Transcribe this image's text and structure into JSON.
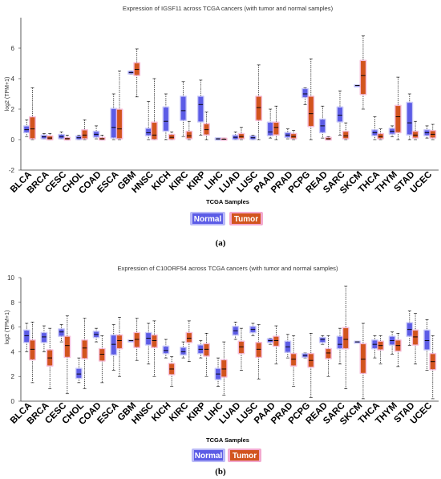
{
  "colors": {
    "normal_fill": "#5c5ce6",
    "tumor_fill": "#d2541e",
    "normal_glow": "#b9b9f7",
    "tumor_glow": "#f3a9cf",
    "axis": "#333333",
    "whisker": "#000000"
  },
  "chart_data": [
    {
      "type": "box",
      "panel_label": "(a)",
      "title": "Expression of IGSF11 across TCGA cancers (with tumor and normal samples)",
      "xlabel": "TCGA Samples",
      "ylabel": "log2 (TPM+1)",
      "ylim": [
        -2,
        8
      ],
      "yticks": [
        -2,
        0,
        2,
        4,
        6
      ],
      "legend": [
        "Normal",
        "Tumor"
      ],
      "legend_position": "bottom-center",
      "categories": [
        "BLCA",
        "BRCA",
        "CESC",
        "CHOL",
        "COAD",
        "ESCA",
        "GBM",
        "HNSC",
        "KICH",
        "KIRC",
        "KIRP",
        "LIHC",
        "LUAD",
        "LUSC",
        "PAAD",
        "PRAD",
        "PCPG",
        "READ",
        "SARC",
        "SKCM",
        "THCA",
        "THYM",
        "STAD",
        "UCEC"
      ],
      "series": [
        {
          "name": "Normal",
          "boxes": [
            [
              0.2,
              0.5,
              0.65,
              0.85,
              1.3
            ],
            [
              0.05,
              0.1,
              0.18,
              0.25,
              0.4
            ],
            [
              0.05,
              0.1,
              0.2,
              0.3,
              0.5
            ],
            [
              0,
              0.05,
              0.12,
              0.2,
              0.3
            ],
            [
              0.05,
              0.2,
              0.35,
              0.5,
              0.9
            ],
            [
              0,
              0.15,
              0.8,
              2.0,
              3.0
            ],
            [
              4.3,
              4.35,
              4.4,
              4.45,
              4.5
            ],
            [
              0,
              0.3,
              0.45,
              0.7,
              2.5
            ],
            [
              0,
              0.6,
              1.2,
              2.1,
              3.0
            ],
            [
              0.2,
              1.3,
              1.9,
              2.8,
              3.8
            ],
            [
              0.3,
              1.2,
              2.3,
              2.8,
              3.9
            ],
            [
              0,
              0.02,
              0.05,
              0.07,
              0.1
            ],
            [
              0,
              0.05,
              0.15,
              0.25,
              0.5
            ],
            [
              0,
              0.05,
              0.12,
              0.2,
              0.3
            ],
            [
              0.1,
              0.3,
              0.5,
              1.1,
              2.0
            ],
            [
              0.05,
              0.18,
              0.3,
              0.42,
              0.7
            ],
            [
              2.3,
              2.8,
              3.0,
              3.3,
              3.4
            ],
            [
              0.1,
              0.5,
              0.9,
              1.3,
              2.2
            ],
            [
              0.3,
              1.2,
              1.6,
              2.1,
              3.2
            ],
            [
              3.55,
              3.55,
              3.55,
              3.55,
              3.55
            ],
            [
              0,
              0.3,
              0.45,
              0.6,
              1.5
            ],
            [
              0.2,
              0.4,
              0.55,
              0.7,
              0.9
            ],
            [
              0,
              0.35,
              1.1,
              2.4,
              3.0
            ],
            [
              0.1,
              0.3,
              0.45,
              0.6,
              0.9
            ]
          ]
        },
        {
          "name": "Tumor",
          "boxes": [
            [
              0,
              0.1,
              0.7,
              1.45,
              3.4
            ],
            [
              0,
              0.03,
              0.1,
              0.2,
              0.4
            ],
            [
              0,
              0.02,
              0.06,
              0.1,
              0.3
            ],
            [
              0,
              0.1,
              0.3,
              0.6,
              1.3
            ],
            [
              0,
              0.02,
              0.05,
              0.1,
              0.3
            ],
            [
              0,
              0.1,
              0.7,
              1.95,
              4.5
            ],
            [
              2.8,
              4.25,
              4.6,
              5.0,
              5.95
            ],
            [
              0,
              0.05,
              0.3,
              1.1,
              4.0
            ],
            [
              0,
              0.05,
              0.15,
              0.3,
              0.5
            ],
            [
              0,
              0.1,
              0.25,
              0.5,
              1.2
            ],
            [
              0,
              0.35,
              0.65,
              1.0,
              1.8
            ],
            [
              0,
              0.01,
              0.03,
              0.05,
              0.1
            ],
            [
              0,
              0.1,
              0.2,
              0.35,
              0.8
            ],
            [
              0,
              1.3,
              2.1,
              2.8,
              4.9
            ],
            [
              0,
              0.35,
              0.8,
              1.1,
              2.2
            ],
            [
              0,
              0.1,
              0.2,
              0.35,
              0.6
            ],
            [
              0,
              0.9,
              1.7,
              2.8,
              5.3
            ],
            [
              0,
              0.02,
              0.05,
              0.1,
              0.2
            ],
            [
              0,
              0.1,
              0.25,
              0.5,
              1.1
            ],
            [
              2.0,
              3.0,
              4.2,
              5.15,
              6.8
            ],
            [
              0,
              0.1,
              0.2,
              0.35,
              0.7
            ],
            [
              0,
              0.5,
              1.5,
              2.2,
              4.1
            ],
            [
              0,
              0.15,
              0.3,
              0.5,
              1.2
            ],
            [
              0,
              0.15,
              0.35,
              0.55,
              1.0
            ]
          ]
        }
      ]
    },
    {
      "type": "box",
      "panel_label": "(b)",
      "title": "Expression of C10ORF54 across TCGA cancers (with tumor and normal samples)",
      "xlabel": "TCGA Samples",
      "ylabel": "log2 (TPM+1)",
      "ylim": [
        0,
        10
      ],
      "yticks": [
        0,
        2,
        4,
        6,
        8,
        10
      ],
      "legend": [
        "Normal",
        "Tumor"
      ],
      "legend_position": "bottom-center",
      "categories": [
        "BLCA",
        "BRCA",
        "CESC",
        "CHOL",
        "COAD",
        "ESCA",
        "GBM",
        "HNSC",
        "KICH",
        "KIRC",
        "KIRP",
        "LIHC",
        "LUAD",
        "LUSC",
        "PAAD",
        "PRAD",
        "PCPG",
        "READ",
        "SARC",
        "SKCM",
        "THCA",
        "THYM",
        "STAD",
        "UCEC"
      ],
      "series": [
        {
          "name": "Normal",
          "boxes": [
            [
              4.0,
              4.8,
              5.3,
              5.7,
              6.3
            ],
            [
              4.0,
              4.8,
              5.2,
              5.5,
              6.1
            ],
            [
              4.8,
              5.3,
              5.6,
              5.8,
              6.2
            ],
            [
              1.5,
              1.9,
              2.2,
              2.6,
              3.5
            ],
            [
              4.8,
              5.2,
              5.4,
              5.6,
              5.9
            ],
            [
              2.5,
              3.8,
              4.6,
              5.3,
              6.2
            ],
            [
              4.9,
              4.9,
              4.9,
              4.9,
              4.9
            ],
            [
              3.0,
              4.6,
              5.1,
              5.5,
              6.3
            ],
            [
              3.5,
              3.9,
              4.1,
              4.4,
              5.0
            ],
            [
              3.5,
              3.8,
              4.0,
              4.3,
              4.8
            ],
            [
              3.5,
              3.9,
              4.2,
              4.5,
              4.9
            ],
            [
              1.2,
              1.8,
              2.2,
              2.6,
              3.5
            ],
            [
              5.0,
              5.4,
              5.7,
              6.0,
              6.4
            ],
            [
              5.3,
              5.6,
              5.8,
              6.0,
              6.3
            ],
            [
              4.6,
              4.8,
              4.9,
              5.0,
              5.1
            ],
            [
              3.5,
              4.0,
              4.4,
              4.8,
              5.4
            ],
            [
              3.5,
              3.6,
              3.7,
              3.8,
              3.9
            ],
            [
              4.6,
              4.8,
              5.0,
              5.1,
              5.3
            ],
            [
              3.0,
              4.3,
              4.6,
              5.2,
              5.9
            ],
            [
              4.8,
              4.8,
              4.8,
              4.8,
              4.8
            ],
            [
              3.5,
              4.3,
              4.6,
              4.9,
              5.3
            ],
            [
              3.8,
              4.6,
              4.9,
              5.2,
              5.6
            ],
            [
              4.5,
              5.3,
              5.8,
              6.3,
              7.3
            ],
            [
              2.5,
              4.2,
              4.9,
              5.7,
              6.6
            ]
          ]
        },
        {
          "name": "Tumor",
          "boxes": [
            [
              1.5,
              3.4,
              4.2,
              4.9,
              6.4
            ],
            [
              1.0,
              2.9,
              3.5,
              4.1,
              5.9
            ],
            [
              0.6,
              3.6,
              4.5,
              5.2,
              6.9
            ],
            [
              1.0,
              3.5,
              4.3,
              4.9,
              6.7
            ],
            [
              1.5,
              3.3,
              3.8,
              4.2,
              5.3
            ],
            [
              2.0,
              4.3,
              4.9,
              5.3,
              6.8
            ],
            [
              3.3,
              4.4,
              5.0,
              5.5,
              6.7
            ],
            [
              2.0,
              4.4,
              4.9,
              5.3,
              6.5
            ],
            [
              1.2,
              2.2,
              2.6,
              3.0,
              3.6
            ],
            [
              3.2,
              4.8,
              5.1,
              5.5,
              6.5
            ],
            [
              2.0,
              3.7,
              4.2,
              4.6,
              5.5
            ],
            [
              0.5,
              2.0,
              2.6,
              3.3,
              4.8
            ],
            [
              2.5,
              3.9,
              4.4,
              4.8,
              5.9
            ],
            [
              1.8,
              3.6,
              4.2,
              4.7,
              6.2
            ],
            [
              3.0,
              4.5,
              4.9,
              5.2,
              6.1
            ],
            [
              1.2,
              2.9,
              3.4,
              3.8,
              5.3
            ],
            [
              0.3,
              2.8,
              3.3,
              3.8,
              5.5
            ],
            [
              2.0,
              3.5,
              3.9,
              4.2,
              5.3
            ],
            [
              1.0,
              4.3,
              5.0,
              5.9,
              9.3
            ],
            [
              0.2,
              2.3,
              3.4,
              4.6,
              6.3
            ],
            [
              3.0,
              4.2,
              4.5,
              4.8,
              5.3
            ],
            [
              2.8,
              4.1,
              4.5,
              4.9,
              5.5
            ],
            [
              3.0,
              4.6,
              5.2,
              5.7,
              7.1
            ],
            [
              0.2,
              2.6,
              3.2,
              3.8,
              5.3
            ]
          ]
        }
      ]
    }
  ]
}
